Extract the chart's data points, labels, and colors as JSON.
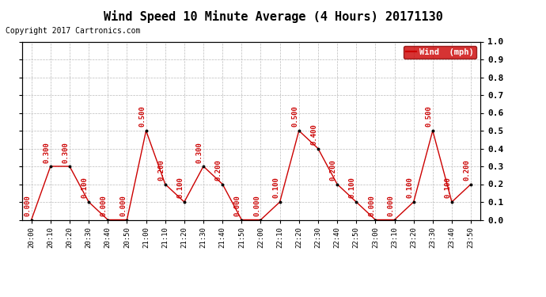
{
  "title": "Wind Speed 10 Minute Average (4 Hours) 20171130",
  "copyright": "Copyright 2017 Cartronics.com",
  "legend_label": "Wind  (mph)",
  "x_labels": [
    "20:00",
    "20:10",
    "20:20",
    "20:30",
    "20:40",
    "20:50",
    "21:00",
    "21:10",
    "21:20",
    "21:30",
    "21:40",
    "21:50",
    "22:00",
    "22:10",
    "22:20",
    "22:30",
    "22:40",
    "22:50",
    "23:00",
    "23:10",
    "23:20",
    "23:30",
    "23:40",
    "23:50"
  ],
  "y_values": [
    0.0,
    0.3,
    0.3,
    0.1,
    0.0,
    0.0,
    0.5,
    0.2,
    0.1,
    0.3,
    0.2,
    0.0,
    0.0,
    0.1,
    0.5,
    0.4,
    0.2,
    0.1,
    0.0,
    0.0,
    0.1,
    0.5,
    0.1,
    0.2
  ],
  "ylim": [
    0.0,
    1.0
  ],
  "yticks": [
    0.0,
    0.1,
    0.2,
    0.3,
    0.4,
    0.5,
    0.6,
    0.7,
    0.8,
    0.9,
    1.0
  ],
  "line_color": "#cc0000",
  "marker_color": "#000000",
  "label_color": "#cc0000",
  "bg_color": "#ffffff",
  "grid_color": "#bbbbbb",
  "title_fontsize": 11,
  "copyright_fontsize": 7,
  "legend_bg": "#cc0000",
  "legend_text_color": "#ffffff",
  "annotation_fontsize": 6.5
}
